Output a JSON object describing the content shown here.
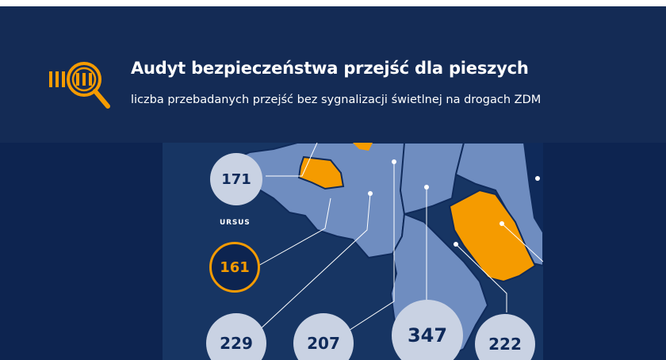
{
  "header": {
    "title": "Audyt bezpieczeństwa przejść dla pieszych",
    "subtitle": "liczba przebadanych przejść bez sygnalizacji świetlnej na drogach ZDM",
    "logo_icon": "crosswalk-magnifier-icon"
  },
  "map": {
    "district_label": "URSUS",
    "counts": [
      "171",
      "161",
      "229",
      "207",
      "347",
      "222"
    ],
    "highlighted_districts": [
      "161",
      "171"
    ]
  },
  "colors": {
    "background": "#0d2450",
    "header": "#142b55",
    "accent": "#f59b00",
    "district": "#6f8dc0",
    "bubble": "#c9d2e3",
    "text_dark": "#0f2a5a"
  }
}
